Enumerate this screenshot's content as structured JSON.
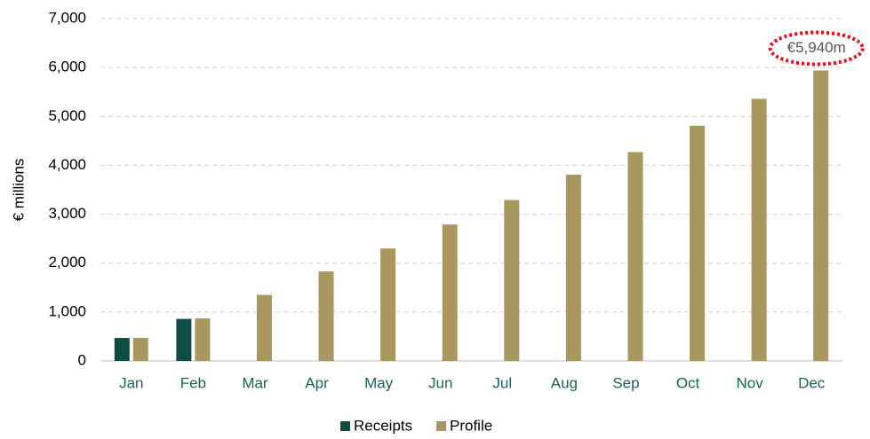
{
  "chart_data": {
    "type": "bar",
    "y_axis_label": "€ millions",
    "categories": [
      "Jan",
      "Feb",
      "Mar",
      "Apr",
      "May",
      "Jun",
      "Jul",
      "Aug",
      "Sep",
      "Oct",
      "Nov",
      "Dec"
    ],
    "series": [
      {
        "name": "Receipts",
        "color": "#0f4c44",
        "values": [
          470,
          860,
          null,
          null,
          null,
          null,
          null,
          null,
          null,
          null,
          null,
          null
        ]
      },
      {
        "name": "Profile",
        "color": "#a8975e",
        "values": [
          470,
          870,
          1350,
          1830,
          2300,
          2790,
          3290,
          3810,
          4270,
          4810,
          5360,
          5940
        ],
        "value_labels": [
          null,
          null,
          null,
          null,
          null,
          null,
          null,
          null,
          null,
          null,
          null,
          "€5,940m"
        ]
      }
    ],
    "ylim": [
      0,
      7000
    ],
    "yticks": [
      0,
      {
        "value": 1000,
        "label": "1,000"
      },
      {
        "value": 2000,
        "label": "2,000"
      },
      {
        "value": 3000,
        "label": "3,000"
      },
      {
        "value": 4000,
        "label": "4,000"
      },
      {
        "value": 5000,
        "label": "5,000"
      },
      {
        "value": 6000,
        "label": "6,000"
      },
      {
        "value": 7000,
        "label": "7,000"
      }
    ],
    "grid": true,
    "legend": "bottom"
  }
}
